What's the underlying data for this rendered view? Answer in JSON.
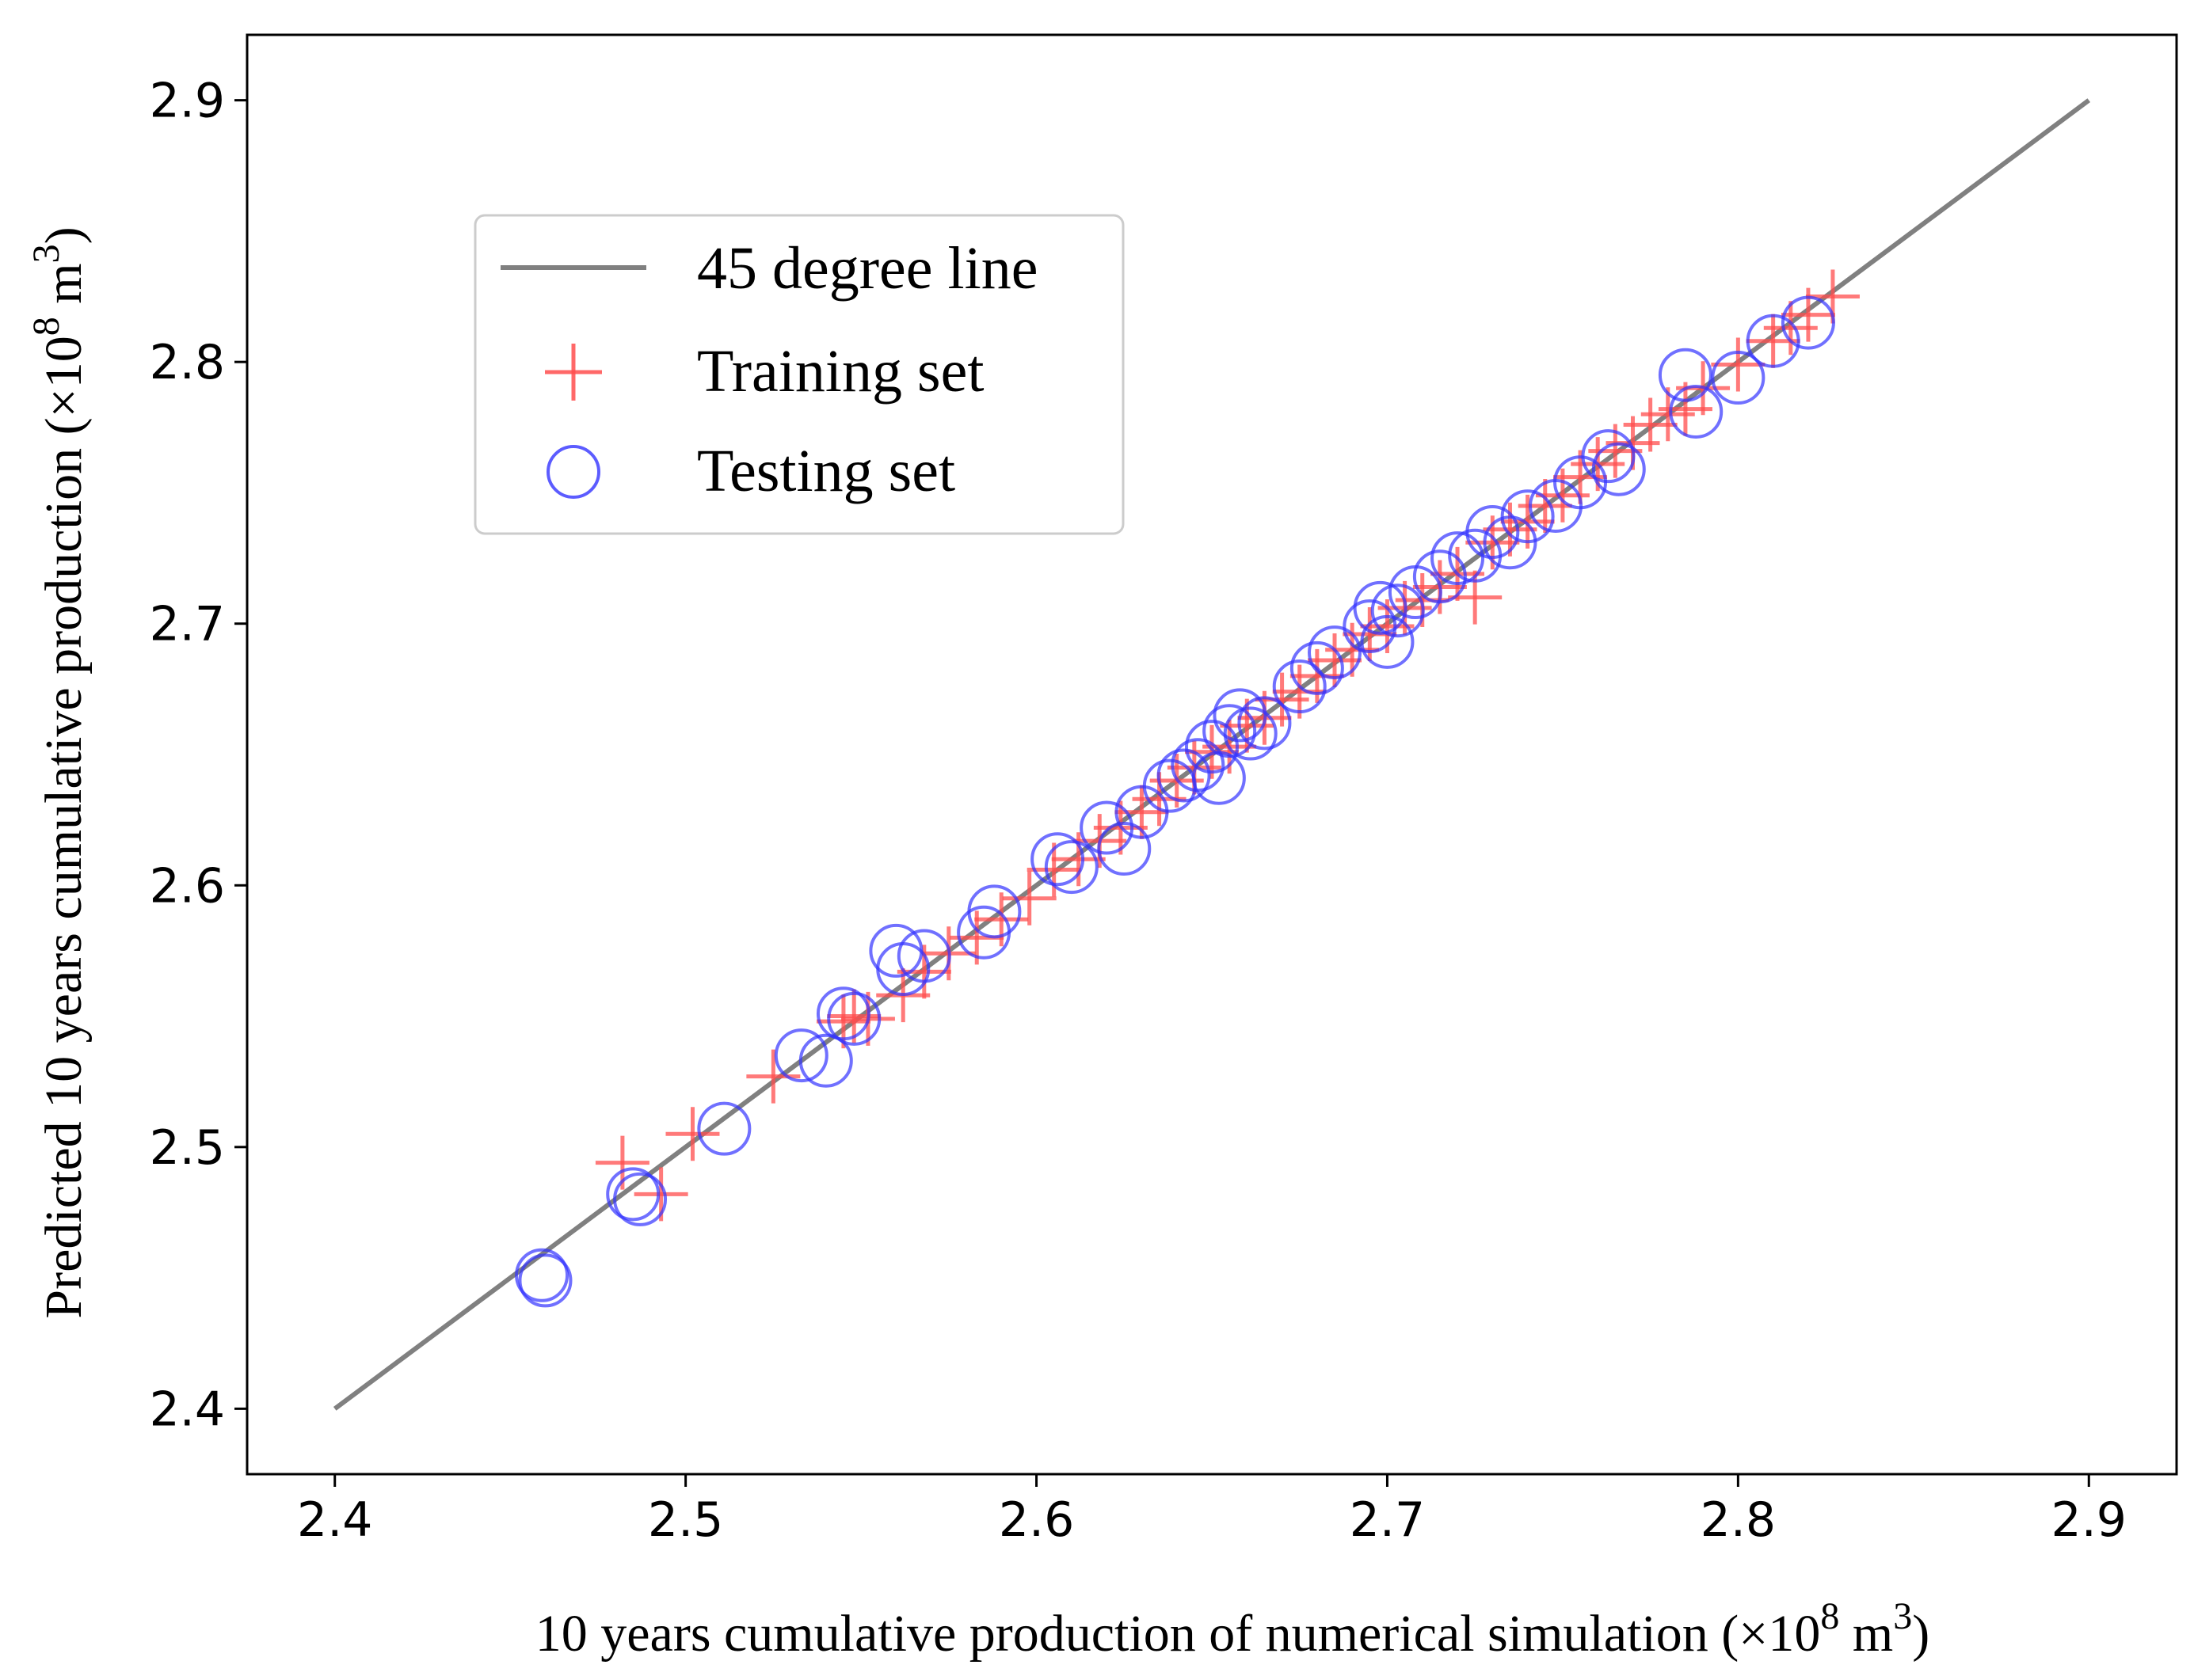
{
  "chart_data": {
    "type": "scatter",
    "xlabel": {
      "prefix": "10 years cumulative production of numerical simulation (×10",
      "exp": "8",
      "mid": " m",
      "exp2": "3",
      "suffix": ")"
    },
    "ylabel": {
      "prefix": "Predicted 10 years cumulative production (×10",
      "exp": "8",
      "mid": " m",
      "exp2": "3",
      "suffix": ")"
    },
    "xlim": [
      2.375,
      2.925
    ],
    "ylim": [
      2.375,
      2.925
    ],
    "xticks": [
      "2.4",
      "2.5",
      "2.6",
      "2.7",
      "2.8",
      "2.9"
    ],
    "yticks": [
      "2.4",
      "2.5",
      "2.6",
      "2.7",
      "2.8",
      "2.9"
    ],
    "legend_position": "upper-left",
    "colors": {
      "line": "#808080",
      "training": "#ff4d4d",
      "testing": "#3333ff",
      "legend_border": "#cccccc"
    },
    "series": [
      {
        "name": "45 degree line",
        "kind": "line",
        "x": [
          2.4,
          2.9
        ],
        "y": [
          2.4,
          2.9
        ]
      },
      {
        "name": "Training set",
        "kind": "plus",
        "x": [
          2.482,
          2.493,
          2.502,
          2.525,
          2.545,
          2.548,
          2.552,
          2.562,
          2.568,
          2.575,
          2.583,
          2.59,
          2.598,
          2.605,
          2.612,
          2.618,
          2.624,
          2.63,
          2.635,
          2.64,
          2.645,
          2.65,
          2.655,
          2.66,
          2.665,
          2.67,
          2.675,
          2.68,
          2.685,
          2.69,
          2.695,
          2.7,
          2.705,
          2.71,
          2.715,
          2.72,
          2.725,
          2.73,
          2.735,
          2.74,
          2.745,
          2.75,
          2.755,
          2.76,
          2.765,
          2.77,
          2.775,
          2.78,
          2.785,
          2.79,
          2.8,
          2.81,
          2.815,
          2.82,
          2.827
        ],
        "y": [
          2.494,
          2.482,
          2.505,
          2.527,
          2.548,
          2.55,
          2.549,
          2.558,
          2.567,
          2.574,
          2.58,
          2.587,
          2.595,
          2.606,
          2.61,
          2.617,
          2.622,
          2.628,
          2.633,
          2.64,
          2.645,
          2.651,
          2.653,
          2.661,
          2.664,
          2.671,
          2.674,
          2.68,
          2.686,
          2.69,
          2.696,
          2.699,
          2.706,
          2.709,
          2.714,
          2.719,
          2.71,
          2.731,
          2.736,
          2.739,
          2.745,
          2.749,
          2.756,
          2.761,
          2.766,
          2.769,
          2.776,
          2.78,
          2.782,
          2.79,
          2.799,
          2.808,
          2.813,
          2.818,
          2.825
        ]
      },
      {
        "name": "Testing set",
        "kind": "circle",
        "x": [
          2.459,
          2.46,
          2.485,
          2.487,
          2.511,
          2.533,
          2.54,
          2.545,
          2.548,
          2.56,
          2.562,
          2.568,
          2.585,
          2.588,
          2.606,
          2.61,
          2.62,
          2.625,
          2.63,
          2.638,
          2.642,
          2.646,
          2.65,
          2.652,
          2.655,
          2.658,
          2.661,
          2.665,
          2.675,
          2.68,
          2.685,
          2.695,
          2.698,
          2.7,
          2.703,
          2.708,
          2.715,
          2.72,
          2.725,
          2.73,
          2.735,
          2.74,
          2.748,
          2.755,
          2.763,
          2.766,
          2.785,
          2.788,
          2.8,
          2.81,
          2.82
        ],
        "y": [
          2.451,
          2.449,
          2.482,
          2.48,
          2.507,
          2.535,
          2.533,
          2.551,
          2.549,
          2.575,
          2.568,
          2.573,
          2.582,
          2.59,
          2.61,
          2.607,
          2.622,
          2.614,
          2.628,
          2.638,
          2.642,
          2.646,
          2.653,
          2.641,
          2.659,
          2.665,
          2.658,
          2.662,
          2.676,
          2.683,
          2.689,
          2.699,
          2.706,
          2.693,
          2.705,
          2.712,
          2.718,
          2.725,
          2.726,
          2.735,
          2.731,
          2.741,
          2.745,
          2.754,
          2.764,
          2.759,
          2.795,
          2.781,
          2.794,
          2.808,
          2.815
        ]
      }
    ]
  }
}
